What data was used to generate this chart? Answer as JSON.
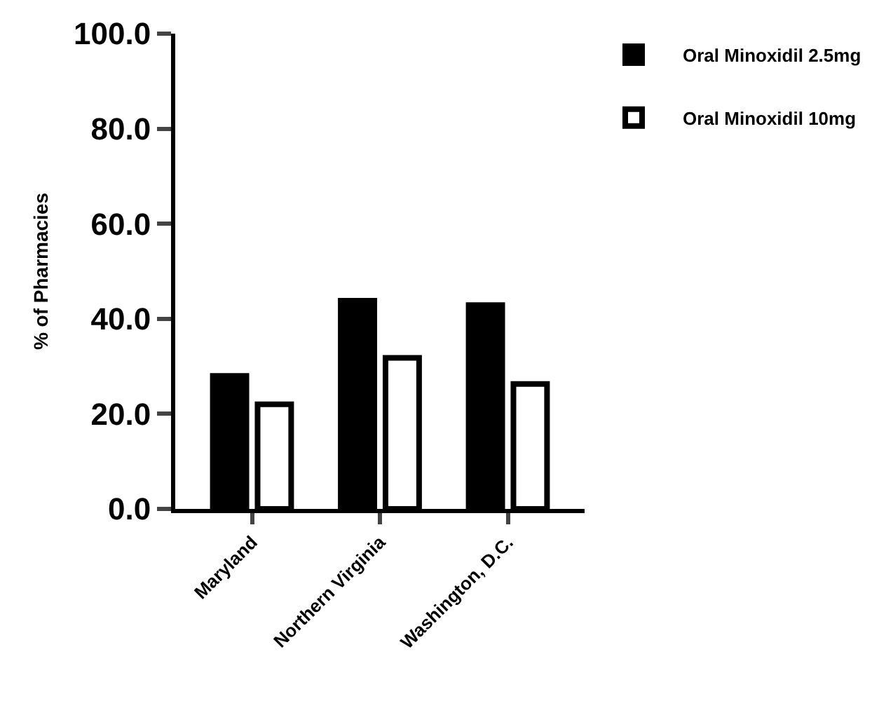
{
  "chart_data": {
    "type": "bar",
    "ylabel": "% of Pharmacies",
    "categories": [
      "Maryland",
      "Northern Virginia",
      "Washington, D.C."
    ],
    "series": [
      {
        "name": "Oral Minoxidil 2.5mg",
        "color": "#000000",
        "values": [
          28.0,
          43.8,
          42.9
        ]
      },
      {
        "name": "Oral Minoxidil 10mg",
        "color": "#ffffff",
        "values": [
          22.0,
          31.8,
          26.3
        ]
      }
    ],
    "ylim": [
      0,
      100
    ],
    "yticks": [
      {
        "value": 0,
        "label": "0.0"
      },
      {
        "value": 20,
        "label": "20.0"
      },
      {
        "value": 40,
        "label": "40.0"
      },
      {
        "value": 60,
        "label": "60.0"
      },
      {
        "value": 80,
        "label": "80.0"
      },
      {
        "value": 100,
        "label": "100.0"
      }
    ],
    "legend": "top right"
  }
}
